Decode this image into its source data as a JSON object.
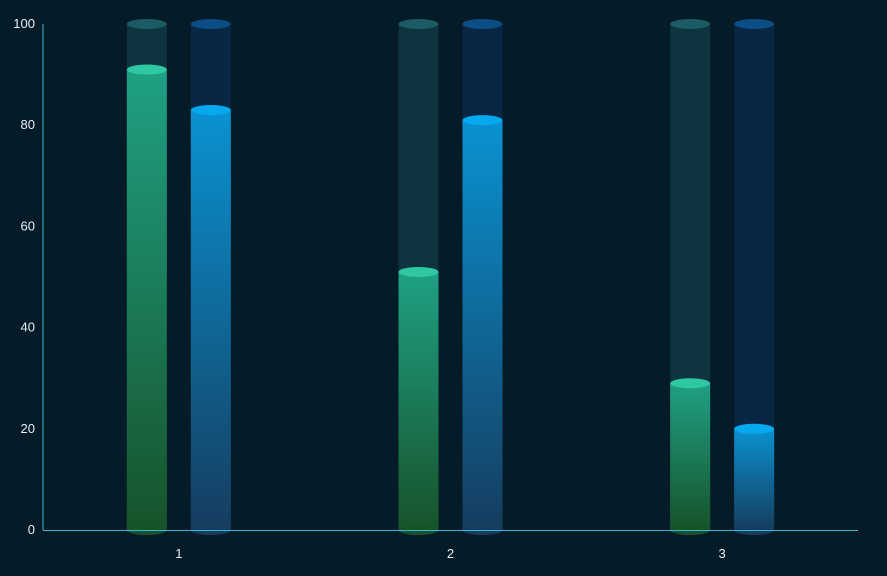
{
  "chart_data": {
    "type": "bar",
    "categories": [
      "1",
      "2",
      "3"
    ],
    "series": [
      {
        "values": [
          91,
          51,
          29
        ]
      },
      {
        "values": [
          83,
          81,
          20
        ]
      }
    ],
    "background_max": 100,
    "title": "",
    "xlabel": "",
    "ylabel": "",
    "ylim": [
      0,
      100
    ],
    "yticks": [
      "0",
      "20",
      "40",
      "60",
      "80",
      "100"
    ],
    "grid": false,
    "legend": "none",
    "colors": {
      "background": "#061b28",
      "axis": "#3fb6d6",
      "series_1_top": "#1fa084",
      "series_1_bottom": "#17532a",
      "series_1_cap": "#2ec9a3",
      "series_1_track": "#0e3440",
      "series_1_track_cap": "#1b5b63",
      "series_2_top": "#0a92d1",
      "series_2_bottom": "#153d5f",
      "series_2_cap": "#06a9ee",
      "series_2_track": "#082744",
      "series_2_track_cap": "#0c4d86"
    }
  }
}
